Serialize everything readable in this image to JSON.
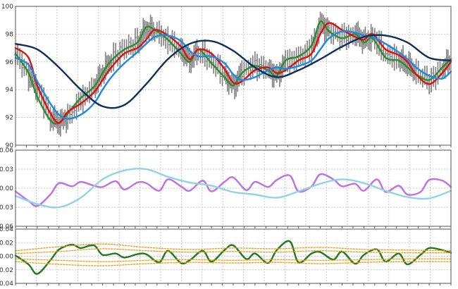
{
  "colors": {
    "grid": "#c8c8c8",
    "frame": "#555555",
    "ohlc": "#7f7f7f",
    "ma_fast": "#2e8b2e",
    "ma_red": "#e01010",
    "ma_blue": "#1e88e5",
    "cycle_navy": "#0d2f5e",
    "osc_violet": "#c070e0",
    "osc_cyan": "#8fd3e8",
    "lower_green": "#1f7a1f",
    "bands_orange": "#f0a020"
  },
  "chart_data": [
    {
      "type": "line",
      "panel": "price",
      "ylim": [
        90,
        100
      ],
      "yticks": [
        "90",
        "92",
        "94",
        "96",
        "98",
        "100"
      ],
      "xlim": [
        0,
        100
      ],
      "grid": true,
      "series": [
        {
          "key": "price_bars",
          "style": "ohlc_bars",
          "color": "ohlc",
          "x": [
            0,
            3,
            5,
            8,
            10,
            12,
            15,
            18,
            20,
            22,
            25,
            28,
            30,
            32,
            35,
            38,
            40,
            42,
            45,
            48,
            50,
            52,
            55,
            58,
            60,
            62,
            65,
            68,
            70,
            72,
            75,
            78,
            80,
            82,
            85,
            88,
            90,
            92,
            95,
            98,
            100
          ],
          "y": [
            96.5,
            95,
            94,
            92,
            91.6,
            92,
            93.3,
            94.2,
            95.3,
            96.2,
            97,
            97.4,
            98.4,
            98.2,
            97.5,
            96.8,
            96.1,
            96.8,
            96,
            95,
            94.2,
            95.3,
            95.8,
            95.4,
            95,
            96,
            96.3,
            97,
            98.8,
            98.2,
            97.8,
            98,
            97.5,
            97.8,
            96.5,
            96.2,
            95.8,
            95.2,
            94.6,
            95.5,
            96.2
          ]
        },
        {
          "key": "ma_fast",
          "color": "ma_fast",
          "x": [
            0,
            3,
            5,
            8,
            10,
            12,
            15,
            18,
            20,
            22,
            25,
            28,
            30,
            32,
            35,
            38,
            40,
            42,
            45,
            48,
            50,
            52,
            55,
            58,
            60,
            62,
            65,
            68,
            70,
            72,
            75,
            78,
            80,
            82,
            85,
            88,
            90,
            92,
            95,
            98,
            100
          ],
          "y": [
            96.6,
            95.2,
            93.5,
            91.8,
            91.6,
            92.3,
            93.4,
            94.2,
            95.2,
            96.1,
            96.9,
            97.4,
            98.5,
            98.3,
            97.6,
            96.6,
            96,
            96.9,
            95.9,
            94.9,
            94.3,
            95.2,
            95.7,
            95.4,
            95,
            96.1,
            96.4,
            97.2,
            98.9,
            98.2,
            97.7,
            98,
            97.4,
            97.7,
            96.3,
            96.1,
            95.6,
            95.1,
            94.7,
            95.6,
            96.2
          ]
        },
        {
          "key": "ma_red",
          "color": "ma_red",
          "x": [
            0,
            3,
            5,
            8,
            10,
            12,
            15,
            18,
            20,
            22,
            25,
            28,
            30,
            32,
            35,
            38,
            40,
            42,
            45,
            48,
            50,
            52,
            55,
            58,
            60,
            62,
            65,
            68,
            70,
            72,
            75,
            78,
            80,
            82,
            85,
            88,
            90,
            92,
            95,
            98,
            100
          ],
          "y": [
            97,
            96.3,
            94.3,
            92.3,
            91.6,
            92.4,
            93,
            93.8,
            94.7,
            95.6,
            96.6,
            97,
            97.6,
            98.3,
            97.9,
            97.1,
            96.2,
            96.9,
            96.6,
            95.5,
            94.5,
            94.6,
            95.4,
            95.6,
            95.2,
            95.4,
            96.1,
            96.6,
            98,
            98.8,
            98.3,
            97.8,
            97.6,
            98,
            96.9,
            96.5,
            96,
            95.1,
            94.4,
            95.2,
            96
          ]
        },
        {
          "key": "ma_blue",
          "color": "ma_blue",
          "x": [
            0,
            3,
            5,
            8,
            10,
            12,
            15,
            18,
            20,
            22,
            25,
            28,
            30,
            32,
            35,
            38,
            40,
            42,
            45,
            48,
            50,
            52,
            55,
            58,
            60,
            62,
            65,
            68,
            70,
            72,
            75,
            78,
            80,
            82,
            85,
            88,
            90,
            92,
            95,
            98,
            100
          ],
          "y": [
            96.3,
            95.8,
            94.6,
            93,
            92.2,
            91.9,
            92.2,
            93,
            94,
            94.9,
            95.9,
            96.7,
            97.3,
            97.8,
            97.9,
            97.5,
            96.8,
            96.4,
            96.4,
            95.9,
            95.1,
            94.7,
            94.9,
            95.4,
            95.6,
            95.5,
            95.7,
            96.1,
            96.9,
            97.7,
            98.2,
            98.1,
            97.9,
            97.8,
            97.3,
            96.7,
            96.2,
            95.6,
            95,
            94.8,
            95.3
          ]
        },
        {
          "key": "cycle_navy",
          "color": "cycle_navy",
          "x": [
            0,
            5,
            10,
            15,
            20,
            25,
            30,
            35,
            40,
            45,
            50,
            55,
            60,
            65,
            70,
            75,
            80,
            85,
            90,
            95,
            100
          ],
          "y": [
            97.3,
            96.9,
            95.6,
            94,
            92.8,
            92.9,
            94.4,
            96.2,
            97.3,
            97.5,
            96.8,
            95.6,
            94.9,
            95.4,
            96.2,
            97.1,
            97.8,
            97.9,
            97.4,
            96.3,
            96.1
          ]
        }
      ]
    },
    {
      "type": "line",
      "panel": "oscillator_upper",
      "ylim": [
        -0.06,
        0.06
      ],
      "yticks": [
        "0.06",
        "0.03",
        "0.00",
        "0.03",
        "0.06"
      ],
      "xlim": [
        0,
        100
      ],
      "grid": true,
      "series": [
        {
          "key": "osc_violet",
          "color": "osc_violet",
          "x": [
            0,
            3,
            5,
            8,
            10,
            13,
            15,
            18,
            20,
            23,
            25,
            28,
            30,
            33,
            35,
            38,
            40,
            43,
            45,
            48,
            50,
            53,
            55,
            58,
            60,
            63,
            65,
            68,
            70,
            73,
            75,
            78,
            80,
            83,
            85,
            88,
            90,
            93,
            95,
            98,
            100
          ],
          "y": [
            -0.005,
            -0.02,
            -0.028,
            -0.01,
            0.008,
            0.003,
            0.01,
            0.004,
            0.002,
            0.011,
            -0.002,
            0.009,
            0.008,
            -0.004,
            0.014,
            0.003,
            -0.004,
            0.012,
            -0.005,
            0.01,
            0.017,
            -0.003,
            0.01,
            0.002,
            0.013,
            0.02,
            -0.005,
            0.003,
            0.022,
            0.014,
            0.003,
            0.007,
            -0.004,
            0.014,
            -0.006,
            0.004,
            -0.01,
            -0.006,
            0.013,
            0.012,
            0.002
          ]
        },
        {
          "key": "osc_cyan",
          "color": "osc_cyan",
          "x": [
            0,
            5,
            10,
            15,
            20,
            25,
            30,
            35,
            40,
            45,
            50,
            55,
            60,
            65,
            70,
            75,
            80,
            85,
            90,
            95,
            100
          ],
          "y": [
            -0.012,
            -0.025,
            -0.03,
            -0.015,
            0.014,
            0.028,
            0.03,
            0.018,
            0.009,
            0.004,
            -0.006,
            -0.01,
            -0.015,
            -0.005,
            0.007,
            0.014,
            0.008,
            -0.004,
            -0.014,
            -0.016,
            -0.004
          ]
        }
      ]
    },
    {
      "type": "line",
      "panel": "oscillator_lower",
      "ylim": [
        -0.04,
        0.04
      ],
      "yticks": [
        "0.04",
        "0.02",
        "0.00",
        "0.02",
        "0.04"
      ],
      "xlim": [
        0,
        100
      ],
      "grid": true,
      "series": [
        {
          "key": "lower_green",
          "color": "lower_green",
          "x": [
            0,
            3,
            5,
            8,
            10,
            13,
            15,
            18,
            20,
            23,
            25,
            28,
            30,
            33,
            35,
            38,
            40,
            43,
            45,
            48,
            50,
            53,
            55,
            58,
            60,
            63,
            65,
            68,
            70,
            73,
            75,
            78,
            80,
            83,
            85,
            88,
            90,
            93,
            95,
            98,
            100
          ],
          "y": [
            0.001,
            -0.012,
            -0.026,
            -0.006,
            0.01,
            0.017,
            0.012,
            0.016,
            0.002,
            0.004,
            -0.002,
            0.003,
            0.003,
            -0.009,
            0.008,
            -0.01,
            -0.006,
            0.008,
            -0.008,
            0.009,
            0.016,
            -0.004,
            0.004,
            -0.01,
            0.009,
            0.022,
            -0.009,
            0.004,
            0.006,
            -0.005,
            0.007,
            -0.011,
            0.002,
            0.01,
            -0.008,
            0.004,
            -0.012,
            0.002,
            0.012,
            0.009,
            0.005
          ]
        },
        {
          "key": "band_1",
          "color": "bands_orange",
          "dashed": true,
          "x": [
            0,
            10,
            20,
            30,
            40,
            50,
            60,
            70,
            80,
            90,
            100
          ],
          "y": [
            0.008,
            0.014,
            0.018,
            0.013,
            0.01,
            0.012,
            0.011,
            0.013,
            0.01,
            0.009,
            0.008
          ]
        },
        {
          "key": "band_2",
          "color": "bands_orange",
          "dashed": true,
          "x": [
            0,
            10,
            20,
            30,
            40,
            50,
            60,
            70,
            80,
            90,
            100
          ],
          "y": [
            0.004,
            0.007,
            0.011,
            0.008,
            0.006,
            0.007,
            0.006,
            0.008,
            0.006,
            0.005,
            0.005
          ]
        },
        {
          "key": "band_3",
          "color": "bands_orange",
          "dashed": true,
          "x": [
            0,
            10,
            20,
            30,
            40,
            50,
            60,
            70,
            80,
            90,
            100
          ],
          "y": [
            -0.004,
            -0.006,
            -0.008,
            -0.006,
            -0.005,
            -0.006,
            -0.005,
            -0.006,
            -0.005,
            -0.004,
            -0.004
          ]
        },
        {
          "key": "band_4",
          "color": "bands_orange",
          "dashed": true,
          "x": [
            0,
            10,
            20,
            30,
            40,
            50,
            60,
            70,
            80,
            90,
            100
          ],
          "y": [
            -0.008,
            -0.012,
            -0.014,
            -0.011,
            -0.009,
            -0.01,
            -0.009,
            -0.011,
            -0.009,
            -0.008,
            -0.008
          ]
        }
      ]
    }
  ]
}
